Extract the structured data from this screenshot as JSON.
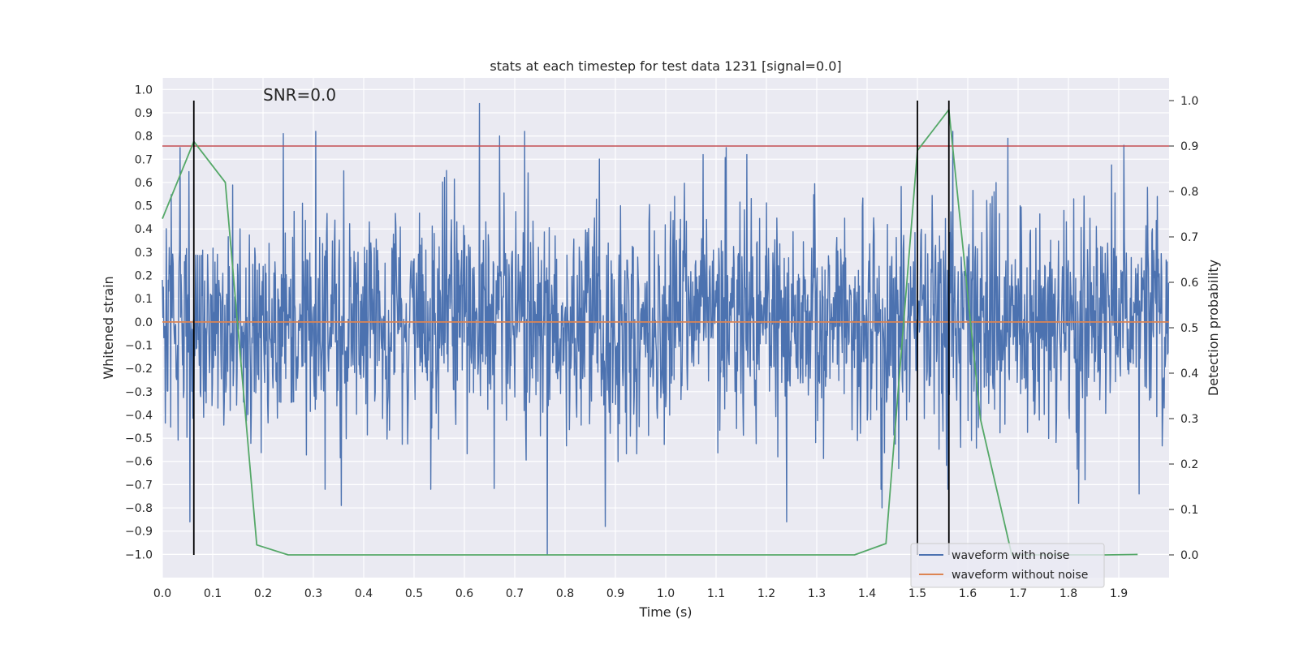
{
  "chart_data": {
    "type": "line",
    "title": "stats at each timestep for test data 1231 [signal=0.0]",
    "annotation": "SNR=0.0",
    "xlabel": "Time (s)",
    "ylabel": "Whitened strain",
    "y2label": "Detection probability",
    "xlim": [
      0.0,
      2.0
    ],
    "ylim": [
      -1.1,
      1.05
    ],
    "y2lim": [
      -0.05,
      1.05
    ],
    "xticks": [
      "0.0",
      "0.1",
      "0.2",
      "0.3",
      "0.4",
      "0.5",
      "0.6",
      "0.7",
      "0.8",
      "0.9",
      "1.0",
      "1.1",
      "1.2",
      "1.3",
      "1.4",
      "1.5",
      "1.6",
      "1.7",
      "1.8",
      "1.9"
    ],
    "yticks": [
      "1.0",
      "0.9",
      "0.8",
      "0.7",
      "0.6",
      "0.5",
      "0.4",
      "0.3",
      "0.2",
      "0.1",
      "0.0",
      "-0.1",
      "-0.2",
      "-0.3",
      "-0.4",
      "-0.5",
      "-0.6",
      "-0.7",
      "-0.8",
      "-0.9",
      "-1.0"
    ],
    "y2ticks": [
      "1.0",
      "0.9",
      "0.8",
      "0.7",
      "0.6",
      "0.5",
      "0.4",
      "0.3",
      "0.2",
      "0.1",
      "0.0"
    ],
    "grid": true,
    "legend_position": "lower-right",
    "series": [
      {
        "name": "waveform with noise",
        "color": "#4c72b0",
        "axis": "left",
        "kind": "noise",
        "sample_rate_hz": 1024,
        "duration_s": 2.0,
        "amplitude_range": [
          -1.0,
          0.94
        ],
        "notable_peaks": [
          {
            "x": 0.035,
            "y": 0.75
          },
          {
            "x": 0.055,
            "y": -0.86
          },
          {
            "x": 0.24,
            "y": 0.81
          },
          {
            "x": 0.305,
            "y": 0.82
          },
          {
            "x": 0.355,
            "y": -0.79
          },
          {
            "x": 0.63,
            "y": 0.94
          },
          {
            "x": 0.67,
            "y": 0.8
          },
          {
            "x": 0.72,
            "y": 0.82
          },
          {
            "x": 0.765,
            "y": -1.0
          },
          {
            "x": 0.88,
            "y": -0.88
          },
          {
            "x": 1.12,
            "y": 0.75
          },
          {
            "x": 1.24,
            "y": -0.86
          },
          {
            "x": 1.43,
            "y": -0.8
          },
          {
            "x": 1.57,
            "y": 0.82
          },
          {
            "x": 1.68,
            "y": 0.79
          },
          {
            "x": 1.82,
            "y": -0.78
          },
          {
            "x": 1.91,
            "y": 0.76
          },
          {
            "x": 1.94,
            "y": -0.74
          }
        ]
      },
      {
        "name": "waveform without noise",
        "color": "#dd8452",
        "axis": "left",
        "kind": "line",
        "x": [
          0.0,
          2.0
        ],
        "y": [
          0.0,
          0.0
        ]
      },
      {
        "name": "",
        "color": "#55a868",
        "axis": "right",
        "kind": "line",
        "x": [
          0.0,
          0.0625,
          0.125,
          0.1875,
          0.25,
          0.3125,
          0.375,
          0.4375,
          0.5,
          0.5625,
          0.625,
          0.6875,
          0.75,
          0.8125,
          0.875,
          0.9375,
          1.0,
          1.0625,
          1.125,
          1.1875,
          1.25,
          1.3125,
          1.375,
          1.4375,
          1.5,
          1.5625,
          1.625,
          1.6875,
          1.75,
          1.8125,
          1.875,
          1.9375
        ],
        "y": [
          0.74,
          0.91,
          0.82,
          0.022,
          0.0,
          0.0,
          0.0,
          0.0,
          0.0,
          0.0,
          0.0,
          0.0,
          0.0,
          0.0,
          0.0,
          0.0,
          0.0,
          0.0,
          0.0,
          0.0,
          0.0,
          0.0,
          0.0,
          0.025,
          0.89,
          0.98,
          0.3,
          0.0,
          0.0,
          0.0,
          0.0,
          0.001
        ]
      }
    ],
    "threshold": {
      "axis": "right",
      "value": 0.9,
      "color": "#c44e52"
    },
    "detections": {
      "color": "#000000",
      "x": [
        0.0625,
        1.5,
        1.5625
      ],
      "y2_range": [
        0.0,
        1.0
      ]
    }
  }
}
